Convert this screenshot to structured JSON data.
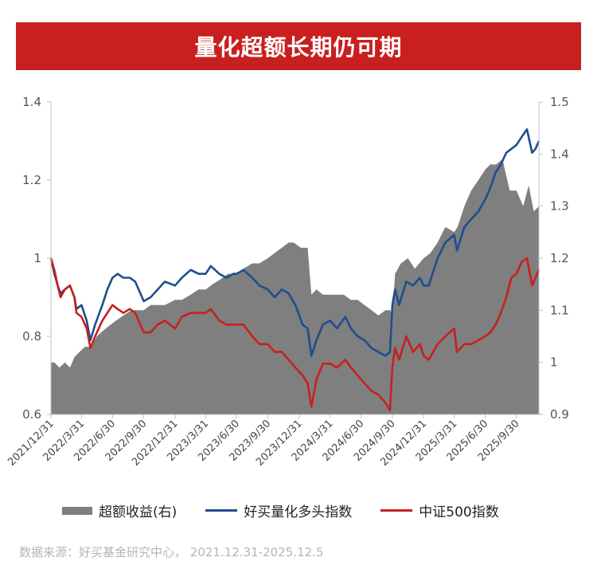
{
  "title": "量化超额长期仍可期",
  "source_text": "数据来源：好买基金研究中心，  2021.12.31-2025.12.5",
  "chart_data": {
    "type": "line",
    "y_left": {
      "ticks": [
        "0.6",
        "0.8",
        "1",
        "1.2",
        "1.4"
      ],
      "range": [
        0.6,
        1.4
      ]
    },
    "y_right": {
      "ticks": [
        "0.9",
        "1",
        "1.1",
        "1.2",
        "1.3",
        "1.4",
        "1.5"
      ],
      "range": [
        0.9,
        1.5
      ]
    },
    "x_ticks": [
      "2021/12/31",
      "2022/3/31",
      "2022/6/30",
      "2022/9/30",
      "2022/12/31",
      "2023/3/31",
      "2023/6/30",
      "2023/9/30",
      "2023/12/31",
      "2024/3/31",
      "2024/6/30",
      "2024/9/30",
      "2024/12/31",
      "2025/3/31",
      "2025/6/30",
      "2025/9/30"
    ],
    "x_range": [
      "2021-12-31",
      "2025-12-05"
    ],
    "grid": false,
    "legend_position": "bottom",
    "series": [
      {
        "name": "超额收益(右)",
        "type": "area",
        "axis": "right",
        "color": "#7f7f7f",
        "points": [
          [
            "2021-12-31",
            1.0
          ],
          [
            "2022-01-10",
            1.0
          ],
          [
            "2022-01-25",
            0.99
          ],
          [
            "2022-02-10",
            1.0
          ],
          [
            "2022-02-25",
            0.99
          ],
          [
            "2022-03-10",
            1.01
          ],
          [
            "2022-03-25",
            1.02
          ],
          [
            "2022-04-10",
            1.03
          ],
          [
            "2022-04-27",
            1.03
          ],
          [
            "2022-05-15",
            1.05
          ],
          [
            "2022-06-01",
            1.06
          ],
          [
            "2022-06-20",
            1.07
          ],
          [
            "2022-07-10",
            1.08
          ],
          [
            "2022-08-01",
            1.09
          ],
          [
            "2022-08-25",
            1.1
          ],
          [
            "2022-09-15",
            1.1
          ],
          [
            "2022-09-30",
            1.1
          ],
          [
            "2022-10-20",
            1.11
          ],
          [
            "2022-11-10",
            1.11
          ],
          [
            "2022-12-01",
            1.11
          ],
          [
            "2022-12-31",
            1.12
          ],
          [
            "2023-01-20",
            1.12
          ],
          [
            "2023-02-15",
            1.13
          ],
          [
            "2023-03-10",
            1.14
          ],
          [
            "2023-03-31",
            1.14
          ],
          [
            "2023-04-20",
            1.15
          ],
          [
            "2023-05-15",
            1.16
          ],
          [
            "2023-06-05",
            1.17
          ],
          [
            "2023-06-30",
            1.17
          ],
          [
            "2023-07-20",
            1.18
          ],
          [
            "2023-08-15",
            1.19
          ],
          [
            "2023-09-05",
            1.19
          ],
          [
            "2023-09-30",
            1.2
          ],
          [
            "2023-10-20",
            1.21
          ],
          [
            "2023-11-10",
            1.22
          ],
          [
            "2023-11-30",
            1.23
          ],
          [
            "2023-12-15",
            1.23
          ],
          [
            "2024-01-05",
            1.22
          ],
          [
            "2024-01-25",
            1.22
          ],
          [
            "2024-02-05",
            1.13
          ],
          [
            "2024-02-20",
            1.14
          ],
          [
            "2024-03-10",
            1.13
          ],
          [
            "2024-03-31",
            1.13
          ],
          [
            "2024-04-20",
            1.13
          ],
          [
            "2024-05-10",
            1.13
          ],
          [
            "2024-05-31",
            1.12
          ],
          [
            "2024-06-20",
            1.12
          ],
          [
            "2024-07-10",
            1.11
          ],
          [
            "2024-07-31",
            1.1
          ],
          [
            "2024-08-20",
            1.09
          ],
          [
            "2024-09-10",
            1.1
          ],
          [
            "2024-09-24",
            1.1
          ],
          [
            "2024-09-30",
            1.09
          ],
          [
            "2024-10-08",
            1.17
          ],
          [
            "2024-10-25",
            1.19
          ],
          [
            "2024-11-15",
            1.2
          ],
          [
            "2024-12-05",
            1.18
          ],
          [
            "2024-12-31",
            1.2
          ],
          [
            "2025-01-20",
            1.21
          ],
          [
            "2025-02-10",
            1.23
          ],
          [
            "2025-03-05",
            1.26
          ],
          [
            "2025-03-31",
            1.25
          ],
          [
            "2025-04-10",
            1.26
          ],
          [
            "2025-04-30",
            1.3
          ],
          [
            "2025-05-20",
            1.33
          ],
          [
            "2025-06-10",
            1.35
          ],
          [
            "2025-06-30",
            1.37
          ],
          [
            "2025-07-15",
            1.38
          ],
          [
            "2025-08-01",
            1.38
          ],
          [
            "2025-08-20",
            1.39
          ],
          [
            "2025-09-10",
            1.33
          ],
          [
            "2025-09-30",
            1.33
          ],
          [
            "2025-10-20",
            1.3
          ],
          [
            "2025-11-05",
            1.34
          ],
          [
            "2025-11-20",
            1.29
          ],
          [
            "2025-12-05",
            1.3
          ]
        ]
      },
      {
        "name": "好买量化多头指数",
        "type": "line",
        "axis": "left",
        "color": "#1f4e8c",
        "points": [
          [
            "2021-12-31",
            1.0
          ],
          [
            "2022-01-10",
            0.96
          ],
          [
            "2022-01-20",
            0.93
          ],
          [
            "2022-01-28",
            0.91
          ],
          [
            "2022-02-10",
            0.92
          ],
          [
            "2022-02-25",
            0.93
          ],
          [
            "2022-03-10",
            0.9
          ],
          [
            "2022-03-16",
            0.87
          ],
          [
            "2022-03-31",
            0.88
          ],
          [
            "2022-04-15",
            0.84
          ],
          [
            "2022-04-26",
            0.79
          ],
          [
            "2022-05-10",
            0.83
          ],
          [
            "2022-05-31",
            0.88
          ],
          [
            "2022-06-15",
            0.92
          ],
          [
            "2022-06-30",
            0.95
          ],
          [
            "2022-07-15",
            0.96
          ],
          [
            "2022-08-01",
            0.95
          ],
          [
            "2022-08-20",
            0.95
          ],
          [
            "2022-09-05",
            0.94
          ],
          [
            "2022-09-30",
            0.89
          ],
          [
            "2022-10-20",
            0.9
          ],
          [
            "2022-11-10",
            0.92
          ],
          [
            "2022-12-01",
            0.94
          ],
          [
            "2022-12-31",
            0.93
          ],
          [
            "2023-01-20",
            0.95
          ],
          [
            "2023-02-15",
            0.97
          ],
          [
            "2023-03-10",
            0.96
          ],
          [
            "2023-03-31",
            0.96
          ],
          [
            "2023-04-15",
            0.98
          ],
          [
            "2023-05-10",
            0.96
          ],
          [
            "2023-05-31",
            0.95
          ],
          [
            "2023-06-20",
            0.96
          ],
          [
            "2023-06-30",
            0.96
          ],
          [
            "2023-07-20",
            0.97
          ],
          [
            "2023-08-15",
            0.95
          ],
          [
            "2023-09-05",
            0.93
          ],
          [
            "2023-09-30",
            0.92
          ],
          [
            "2023-10-20",
            0.9
          ],
          [
            "2023-11-10",
            0.92
          ],
          [
            "2023-11-30",
            0.91
          ],
          [
            "2023-12-20",
            0.88
          ],
          [
            "2024-01-10",
            0.83
          ],
          [
            "2024-01-25",
            0.82
          ],
          [
            "2024-02-05",
            0.75
          ],
          [
            "2024-02-20",
            0.79
          ],
          [
            "2024-03-10",
            0.83
          ],
          [
            "2024-03-31",
            0.84
          ],
          [
            "2024-04-20",
            0.82
          ],
          [
            "2024-05-15",
            0.85
          ],
          [
            "2024-05-31",
            0.82
          ],
          [
            "2024-06-20",
            0.8
          ],
          [
            "2024-07-10",
            0.79
          ],
          [
            "2024-07-31",
            0.77
          ],
          [
            "2024-08-20",
            0.76
          ],
          [
            "2024-09-10",
            0.75
          ],
          [
            "2024-09-23",
            0.76
          ],
          [
            "2024-09-30",
            0.88
          ],
          [
            "2024-10-08",
            0.92
          ],
          [
            "2024-10-20",
            0.88
          ],
          [
            "2024-11-10",
            0.94
          ],
          [
            "2024-11-30",
            0.93
          ],
          [
            "2024-12-20",
            0.95
          ],
          [
            "2024-12-31",
            0.93
          ],
          [
            "2025-01-15",
            0.93
          ],
          [
            "2025-02-10",
            1.0
          ],
          [
            "2025-03-05",
            1.04
          ],
          [
            "2025-03-31",
            1.06
          ],
          [
            "2025-04-08",
            1.02
          ],
          [
            "2025-04-30",
            1.08
          ],
          [
            "2025-05-20",
            1.1
          ],
          [
            "2025-06-10",
            1.12
          ],
          [
            "2025-06-30",
            1.15
          ],
          [
            "2025-07-15",
            1.18
          ],
          [
            "2025-07-31",
            1.22
          ],
          [
            "2025-08-15",
            1.24
          ],
          [
            "2025-08-31",
            1.27
          ],
          [
            "2025-09-15",
            1.28
          ],
          [
            "2025-09-30",
            1.29
          ],
          [
            "2025-10-15",
            1.31
          ],
          [
            "2025-10-31",
            1.33
          ],
          [
            "2025-11-15",
            1.27
          ],
          [
            "2025-11-25",
            1.28
          ],
          [
            "2025-12-05",
            1.3
          ]
        ]
      },
      {
        "name": "中证500指数",
        "type": "line",
        "axis": "left",
        "color": "#c8201e",
        "points": [
          [
            "2021-12-31",
            1.0
          ],
          [
            "2022-01-10",
            0.97
          ],
          [
            "2022-01-20",
            0.93
          ],
          [
            "2022-01-28",
            0.9
          ],
          [
            "2022-02-10",
            0.92
          ],
          [
            "2022-02-25",
            0.93
          ],
          [
            "2022-03-10",
            0.9
          ],
          [
            "2022-03-16",
            0.86
          ],
          [
            "2022-03-31",
            0.85
          ],
          [
            "2022-04-15",
            0.82
          ],
          [
            "2022-04-26",
            0.77
          ],
          [
            "2022-05-10",
            0.8
          ],
          [
            "2022-05-31",
            0.84
          ],
          [
            "2022-06-15",
            0.86
          ],
          [
            "2022-06-30",
            0.88
          ],
          [
            "2022-07-15",
            0.87
          ],
          [
            "2022-08-01",
            0.86
          ],
          [
            "2022-08-20",
            0.87
          ],
          [
            "2022-09-05",
            0.86
          ],
          [
            "2022-09-30",
            0.81
          ],
          [
            "2022-10-20",
            0.81
          ],
          [
            "2022-11-10",
            0.83
          ],
          [
            "2022-12-01",
            0.84
          ],
          [
            "2022-12-31",
            0.82
          ],
          [
            "2023-01-20",
            0.85
          ],
          [
            "2023-02-15",
            0.86
          ],
          [
            "2023-03-10",
            0.86
          ],
          [
            "2023-03-31",
            0.86
          ],
          [
            "2023-04-15",
            0.87
          ],
          [
            "2023-05-10",
            0.84
          ],
          [
            "2023-05-31",
            0.83
          ],
          [
            "2023-06-20",
            0.83
          ],
          [
            "2023-06-30",
            0.83
          ],
          [
            "2023-07-20",
            0.83
          ],
          [
            "2023-08-15",
            0.8
          ],
          [
            "2023-09-05",
            0.78
          ],
          [
            "2023-09-30",
            0.78
          ],
          [
            "2023-10-20",
            0.76
          ],
          [
            "2023-11-10",
            0.76
          ],
          [
            "2023-11-30",
            0.74
          ],
          [
            "2023-12-20",
            0.72
          ],
          [
            "2024-01-10",
            0.7
          ],
          [
            "2024-01-25",
            0.68
          ],
          [
            "2024-02-05",
            0.62
          ],
          [
            "2024-02-20",
            0.69
          ],
          [
            "2024-03-10",
            0.73
          ],
          [
            "2024-03-31",
            0.73
          ],
          [
            "2024-04-20",
            0.72
          ],
          [
            "2024-05-15",
            0.74
          ],
          [
            "2024-05-31",
            0.72
          ],
          [
            "2024-06-20",
            0.7
          ],
          [
            "2024-07-10",
            0.68
          ],
          [
            "2024-07-31",
            0.66
          ],
          [
            "2024-08-20",
            0.65
          ],
          [
            "2024-09-10",
            0.63
          ],
          [
            "2024-09-23",
            0.61
          ],
          [
            "2024-09-30",
            0.72
          ],
          [
            "2024-10-08",
            0.77
          ],
          [
            "2024-10-20",
            0.74
          ],
          [
            "2024-11-10",
            0.8
          ],
          [
            "2024-11-30",
            0.76
          ],
          [
            "2024-12-20",
            0.78
          ],
          [
            "2024-12-31",
            0.75
          ],
          [
            "2025-01-15",
            0.74
          ],
          [
            "2025-02-10",
            0.78
          ],
          [
            "2025-03-05",
            0.8
          ],
          [
            "2025-03-31",
            0.82
          ],
          [
            "2025-04-08",
            0.76
          ],
          [
            "2025-04-30",
            0.78
          ],
          [
            "2025-05-20",
            0.78
          ],
          [
            "2025-06-10",
            0.79
          ],
          [
            "2025-06-30",
            0.8
          ],
          [
            "2025-07-15",
            0.81
          ],
          [
            "2025-07-31",
            0.83
          ],
          [
            "2025-08-15",
            0.86
          ],
          [
            "2025-08-31",
            0.9
          ],
          [
            "2025-09-15",
            0.95
          ],
          [
            "2025-09-30",
            0.96
          ],
          [
            "2025-10-15",
            0.99
          ],
          [
            "2025-10-31",
            1.0
          ],
          [
            "2025-11-15",
            0.93
          ],
          [
            "2025-11-25",
            0.95
          ],
          [
            "2025-12-05",
            0.97
          ]
        ]
      }
    ]
  }
}
